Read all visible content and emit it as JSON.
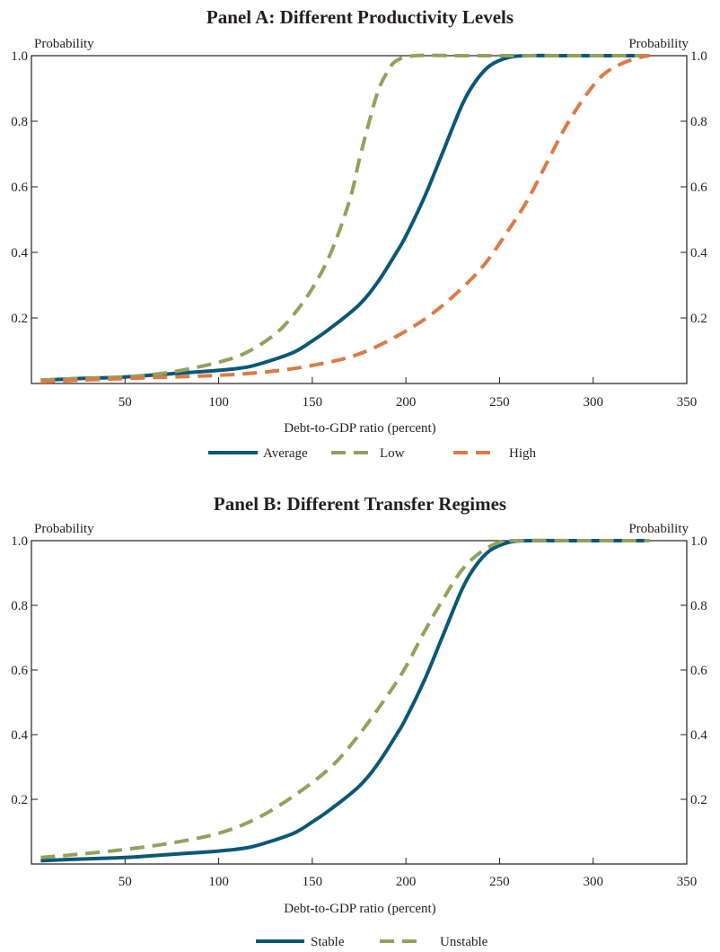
{
  "chart_data": [
    {
      "type": "line",
      "title": "Panel A: Different Productivity Levels",
      "xlabel": "Debt-to-GDP ratio (percent)",
      "ylabel_left": "Probability",
      "ylabel_right": "Probability",
      "xlim": [
        0,
        350
      ],
      "ylim": [
        0,
        1.0
      ],
      "xticks": [
        50,
        100,
        150,
        200,
        250,
        300,
        350
      ],
      "yticks": [
        0.2,
        0.4,
        0.6,
        0.8,
        1.0
      ],
      "ytick_labels": [
        "0.2",
        "0.4",
        "0.6",
        "0.8",
        "1.0"
      ],
      "grid": false,
      "legend_position": "bottom",
      "series": [
        {
          "name": "Average",
          "color": "#0b5777",
          "dash": "solid",
          "x": [
            5,
            25,
            50,
            75,
            100,
            115,
            125,
            140,
            150,
            160,
            175,
            185,
            195,
            200,
            210,
            220,
            230,
            237,
            245,
            255,
            265,
            280,
            300,
            330
          ],
          "y": [
            0.01,
            0.015,
            0.02,
            0.03,
            0.04,
            0.05,
            0.065,
            0.095,
            0.13,
            0.17,
            0.24,
            0.31,
            0.4,
            0.45,
            0.57,
            0.71,
            0.85,
            0.92,
            0.97,
            0.995,
            1.0,
            1.0,
            1.0,
            1.0
          ]
        },
        {
          "name": "Low",
          "color": "#8fa35c",
          "dash": "dashed",
          "x": [
            5,
            25,
            50,
            75,
            100,
            115,
            130,
            140,
            150,
            160,
            170,
            175,
            180,
            185,
            190,
            195,
            205,
            230,
            260,
            300,
            330
          ],
          "y": [
            0.01,
            0.015,
            0.02,
            0.035,
            0.065,
            0.095,
            0.15,
            0.21,
            0.29,
            0.4,
            0.56,
            0.68,
            0.79,
            0.89,
            0.95,
            0.985,
            1.0,
            1.0,
            1.0,
            1.0,
            1.0
          ]
        },
        {
          "name": "High",
          "color": "#dd7a45",
          "dash": "dashed",
          "x": [
            5,
            25,
            50,
            75,
            100,
            125,
            150,
            175,
            200,
            220,
            240,
            255,
            265,
            275,
            285,
            295,
            305,
            315,
            325,
            330
          ],
          "y": [
            0.005,
            0.01,
            0.015,
            0.02,
            0.025,
            0.035,
            0.055,
            0.09,
            0.16,
            0.24,
            0.35,
            0.47,
            0.56,
            0.67,
            0.78,
            0.87,
            0.94,
            0.975,
            0.995,
            1.0
          ]
        }
      ]
    },
    {
      "type": "line",
      "title": "Panel B: Different Transfer Regimes",
      "xlabel": "Debt-to-GDP ratio (percent)",
      "ylabel_left": "Probability",
      "ylabel_right": "Probability",
      "xlim": [
        0,
        350
      ],
      "ylim": [
        0,
        1.0
      ],
      "xticks": [
        50,
        100,
        150,
        200,
        250,
        300,
        350
      ],
      "yticks": [
        0.2,
        0.4,
        0.6,
        0.8,
        1.0
      ],
      "ytick_labels": [
        "0.2",
        "0.4",
        "0.6",
        "0.8",
        "1.0"
      ],
      "grid": false,
      "legend_position": "bottom",
      "series": [
        {
          "name": "Stable",
          "color": "#0b5777",
          "dash": "solid",
          "x": [
            5,
            25,
            50,
            75,
            100,
            115,
            125,
            140,
            150,
            160,
            175,
            185,
            195,
            200,
            210,
            220,
            230,
            237,
            245,
            255,
            265,
            280,
            300,
            330
          ],
          "y": [
            0.01,
            0.015,
            0.02,
            0.03,
            0.04,
            0.05,
            0.065,
            0.095,
            0.13,
            0.17,
            0.24,
            0.31,
            0.4,
            0.45,
            0.57,
            0.71,
            0.85,
            0.92,
            0.97,
            0.995,
            1.0,
            1.0,
            1.0,
            1.0
          ]
        },
        {
          "name": "Unstable",
          "color": "#8fa35c",
          "dash": "dashed",
          "x": [
            5,
            25,
            50,
            75,
            100,
            120,
            140,
            160,
            175,
            190,
            200,
            210,
            220,
            230,
            240,
            250,
            260,
            300,
            330
          ],
          "y": [
            0.02,
            0.03,
            0.045,
            0.065,
            0.095,
            0.14,
            0.21,
            0.3,
            0.4,
            0.52,
            0.61,
            0.72,
            0.82,
            0.91,
            0.965,
            0.995,
            1.0,
            1.0,
            1.0
          ]
        }
      ]
    }
  ]
}
